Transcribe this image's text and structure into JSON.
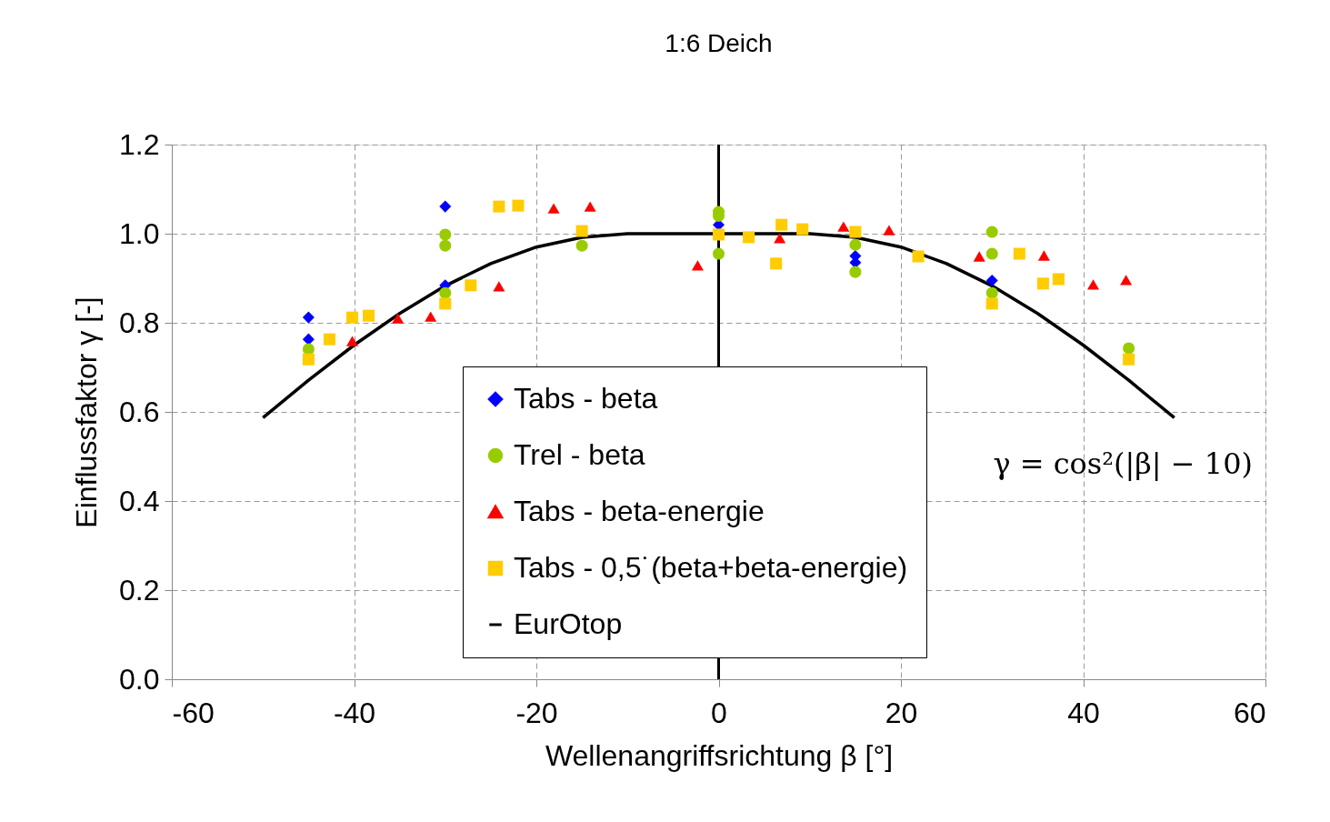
{
  "chart_data": {
    "type": "scatter",
    "title": "1:6 Deich",
    "xlabel": "Wellenangriffsrichtung β [°]",
    "ylabel": "Einflussfaktor γ [-]",
    "xlim": [
      -60,
      60
    ],
    "xticks": [
      -60,
      -40,
      -20,
      0,
      20,
      40,
      60
    ],
    "ylim": [
      0,
      1.2
    ],
    "yticks": [
      {
        "value": 0,
        "label": "0.0"
      },
      {
        "value": 0.2,
        "label": "0.2"
      },
      {
        "value": 0.4,
        "label": "0.4"
      },
      {
        "value": 0.6,
        "label": "0.6"
      },
      {
        "value": 0.8,
        "label": "0.8"
      },
      {
        "value": 1.0,
        "label": "1.0"
      },
      {
        "value": 1.2,
        "label": "1.2"
      }
    ],
    "grid": true,
    "legend": "bottom",
    "ref_lines": [
      {
        "axis": "x",
        "value": 0,
        "color": "#000000"
      }
    ],
    "annotations": [
      "γ = cos²(|β| − 10)"
    ],
    "series": [
      {
        "name": "Tabs - beta",
        "marker": "diamond",
        "color": "#0000ff",
        "x": [
          -45,
          -45,
          -30,
          -30,
          0,
          15,
          15,
          30
        ],
        "values": [
          0.812,
          0.763,
          1.061,
          0.884,
          1.02,
          0.95,
          0.935,
          0.895
        ]
      },
      {
        "name": "Trel - beta",
        "marker": "circle",
        "color": "#99cc00",
        "x": [
          -45,
          -30,
          -30,
          -30,
          -15,
          0,
          0,
          0,
          15,
          15,
          30,
          30,
          30,
          45
        ],
        "values": [
          0.741,
          0.998,
          0.973,
          0.867,
          0.973,
          1.049,
          1.04,
          0.955,
          0.975,
          0.914,
          1.004,
          0.955,
          0.867,
          0.743
        ]
      },
      {
        "name": "Tabs - beta-energie",
        "marker": "triangle",
        "color": "#ff0000",
        "x": [
          -40.2,
          -35.2,
          -31.6,
          -24.1,
          -18.1,
          -14.1,
          -2.3,
          6.7,
          13.7,
          18.7,
          28.6,
          35.7,
          41.1,
          44.7
        ],
        "values": [
          0.759,
          0.81,
          0.814,
          0.882,
          1.057,
          1.061,
          0.929,
          0.99,
          1.016,
          1.008,
          0.949,
          0.951,
          0.886,
          0.896
        ]
      },
      {
        "name": "Tabs - 0,5˙(beta+beta-energie)",
        "marker": "square",
        "color": "#ffcc00",
        "x": [
          -45,
          -42.7,
          -40.2,
          -38.4,
          -30,
          -27.2,
          -24.1,
          -22,
          -15,
          0,
          3.3,
          6.3,
          6.9,
          9.2,
          15,
          21.9,
          30,
          33,
          35.6,
          37.3,
          45
        ],
        "values": [
          0.718,
          0.763,
          0.812,
          0.816,
          0.843,
          0.884,
          1.061,
          1.063,
          1.006,
          0.998,
          0.992,
          0.933,
          1.02,
          1.01,
          1.004,
          0.949,
          0.843,
          0.955,
          0.888,
          0.898,
          0.718
        ]
      },
      {
        "name": "EurOtop",
        "type": "line",
        "marker": "none",
        "line_style": "solid",
        "color": "#000000",
        "x": [
          -50,
          -45,
          -40,
          -35,
          -30,
          -25,
          -20,
          -15,
          -10,
          0,
          10,
          15,
          20,
          25,
          30,
          35,
          40,
          45,
          50
        ],
        "values": [
          0.587,
          0.671,
          0.75,
          0.821,
          0.883,
          0.933,
          0.97,
          0.992,
          1,
          1,
          1,
          0.992,
          0.97,
          0.933,
          0.883,
          0.821,
          0.75,
          0.671,
          0.587
        ]
      }
    ]
  }
}
